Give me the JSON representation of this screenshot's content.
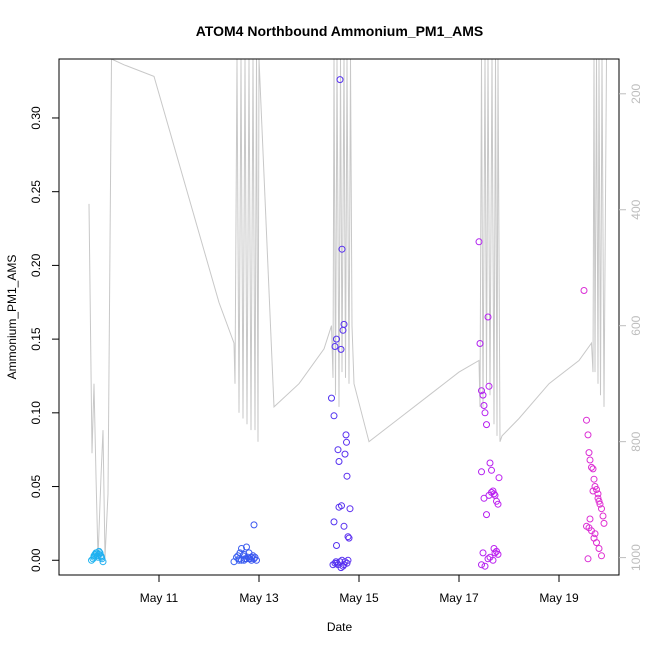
{
  "chart_data": {
    "type": "scatter",
    "title": "ATOM4 Northbound Ammonium_PM1_AMS",
    "xlabel": "Date",
    "ylabel": "Ammonium_PM1_AMS",
    "x_ticks": [
      "May 11",
      "May 13",
      "May 15",
      "May 17",
      "May 19"
    ],
    "x_tick_values": [
      11,
      13,
      15,
      17,
      19
    ],
    "xlim": [
      9.0,
      20.2
    ],
    "ylim": [
      -0.01,
      0.34
    ],
    "y_ticks": [
      "0.00",
      "0.05",
      "0.10",
      "0.15",
      "0.20",
      "0.25",
      "0.30"
    ],
    "y_tick_values": [
      0.0,
      0.05,
      0.1,
      0.15,
      0.2,
      0.25,
      0.3
    ],
    "right_axis": {
      "reversed": true,
      "lim": [
        1030,
        140
      ],
      "ticks": [
        "200",
        "400",
        "600",
        "800",
        "1000"
      ],
      "tick_values": [
        200,
        400,
        600,
        800,
        1000
      ],
      "color": "#bdbdbd"
    },
    "grid": false,
    "colors": {
      "altitude_line": "#c8c8c8",
      "palette": [
        "#1eb4f0",
        "#3a7cf0",
        "#3a3af0",
        "#7a22f0",
        "#c020f0",
        "#e030d0"
      ]
    },
    "altitude_series": {
      "x": [
        9.6,
        9.66,
        9.7,
        9.74,
        9.78,
        9.84,
        9.88,
        9.92,
        9.98,
        10.05,
        10.3,
        10.9,
        11.6,
        12.2,
        12.5,
        12.52,
        12.56,
        12.6,
        12.64,
        12.68,
        12.72,
        12.76,
        12.8,
        12.84,
        12.88,
        12.92,
        12.95,
        12.98,
        13.0,
        13.3,
        13.8,
        14.3,
        14.45,
        14.48,
        14.5,
        14.53,
        14.56,
        14.6,
        14.63,
        14.66,
        14.7,
        14.73,
        14.76,
        14.8,
        14.83,
        14.86,
        14.9,
        15.2,
        15.8,
        16.4,
        17.0,
        17.4,
        17.42,
        17.45,
        17.48,
        17.52,
        17.55,
        17.58,
        17.62,
        17.66,
        17.7,
        17.73,
        17.76,
        17.78,
        17.82,
        17.86,
        18.2,
        18.8,
        19.4,
        19.65,
        19.68,
        19.7,
        19.72,
        19.75,
        19.78,
        19.8,
        19.83,
        19.86,
        19.9,
        19.95
      ],
      "y": [
        390,
        820,
        700,
        860,
        1000,
        860,
        780,
        1000,
        890,
        140,
        150,
        170,
        380,
        560,
        630,
        700,
        140,
        750,
        140,
        760,
        140,
        770,
        140,
        780,
        140,
        780,
        140,
        800,
        140,
        740,
        700,
        640,
        600,
        690,
        140,
        720,
        140,
        740,
        140,
        680,
        140,
        690,
        140,
        700,
        140,
        600,
        700,
        800,
        760,
        720,
        680,
        660,
        740,
        140,
        740,
        140,
        700,
        140,
        720,
        140,
        770,
        140,
        790,
        140,
        800,
        790,
        760,
        700,
        660,
        630,
        680,
        140,
        680,
        140,
        700,
        140,
        720,
        140,
        740,
        140
      ]
    },
    "series": [
      {
        "x": [
          9.65,
          9.68,
          9.7,
          9.72,
          9.74,
          9.76,
          9.78,
          9.8,
          9.82,
          9.84,
          9.86,
          9.88,
          9.7,
          9.75,
          9.8,
          9.85
        ],
        "values": [
          0.0,
          0.001,
          0.002,
          0.004,
          0.005,
          0.003,
          0.002,
          0.004,
          0.005,
          0.003,
          0.001,
          -0.001,
          0.003,
          0.005,
          0.006,
          0.002
        ]
      },
      {
        "x": [
          12.5,
          12.55,
          12.6,
          12.62,
          12.65,
          12.68,
          12.7,
          12.72,
          12.75,
          12.78,
          12.8,
          12.82,
          12.85,
          12.88,
          12.9,
          12.92,
          12.95,
          12.6,
          12.7,
          12.8,
          12.9,
          12.65,
          12.75,
          12.85,
          12.58
        ],
        "values": [
          -0.001,
          0.002,
          0.001,
          0.005,
          0.008,
          0.003,
          0.0,
          0.001,
          0.009,
          0.002,
          0.005,
          0.001,
          0.0,
          0.003,
          0.001,
          0.002,
          0.0,
          0.0,
          0.004,
          0.001,
          0.024,
          0.0,
          0.001,
          0.002,
          0.003
        ]
      },
      {
        "x": [
          14.45,
          14.5,
          14.52,
          14.55,
          14.58,
          14.6,
          14.62,
          14.64,
          14.66,
          14.68,
          14.7,
          14.72,
          14.74,
          14.76,
          14.78,
          14.8,
          14.82,
          14.5,
          14.55,
          14.6,
          14.65,
          14.7,
          14.75,
          14.52,
          14.58,
          14.62,
          14.68,
          14.72,
          14.78,
          14.48,
          14.56,
          14.64,
          14.7,
          14.76,
          14.54,
          14.66
        ],
        "values": [
          0.11,
          0.098,
          0.145,
          0.15,
          0.075,
          0.067,
          0.326,
          0.143,
          0.211,
          0.156,
          0.16,
          0.072,
          0.085,
          0.057,
          0.016,
          0.015,
          0.035,
          0.026,
          0.01,
          0.036,
          0.037,
          0.023,
          0.08,
          -0.002,
          -0.003,
          -0.001,
          -0.004,
          -0.001,
          0.0,
          -0.003,
          -0.002,
          -0.005,
          -0.003,
          -0.002,
          -0.001,
          0.0
        ]
      },
      {
        "x": [
          17.4,
          17.42,
          17.45,
          17.48,
          17.5,
          17.52,
          17.55,
          17.58,
          17.6,
          17.62,
          17.65,
          17.68,
          17.7,
          17.72,
          17.75,
          17.78,
          17.8,
          17.45,
          17.5,
          17.55,
          17.6,
          17.65,
          17.7,
          17.75,
          17.48,
          17.58,
          17.68,
          17.72,
          17.78,
          17.45,
          17.52,
          17.62
        ],
        "values": [
          0.216,
          0.147,
          0.115,
          0.112,
          0.105,
          0.1,
          0.092,
          0.165,
          0.118,
          0.066,
          0.061,
          0.047,
          0.045,
          0.044,
          0.04,
          0.038,
          0.056,
          0.06,
          0.042,
          0.031,
          0.044,
          0.046,
          0.008,
          0.006,
          0.005,
          0.001,
          0.0,
          0.005,
          0.004,
          -0.003,
          -0.004,
          0.002
        ]
      },
      {
        "x": [
          19.5,
          19.55,
          19.58,
          19.6,
          19.62,
          19.65,
          19.68,
          19.7,
          19.72,
          19.75,
          19.78,
          19.8,
          19.82,
          19.85,
          19.88,
          19.9,
          19.55,
          19.6,
          19.65,
          19.7,
          19.75,
          19.8,
          19.85,
          19.58,
          19.68,
          19.78,
          19.62,
          19.72
        ],
        "values": [
          0.183,
          0.095,
          0.085,
          0.073,
          0.068,
          0.063,
          0.062,
          0.055,
          0.05,
          0.048,
          0.045,
          0.04,
          0.038,
          0.035,
          0.03,
          0.025,
          0.023,
          0.022,
          0.02,
          0.015,
          0.012,
          0.008,
          0.003,
          0.001,
          0.047,
          0.042,
          0.028,
          0.018
        ]
      }
    ]
  }
}
